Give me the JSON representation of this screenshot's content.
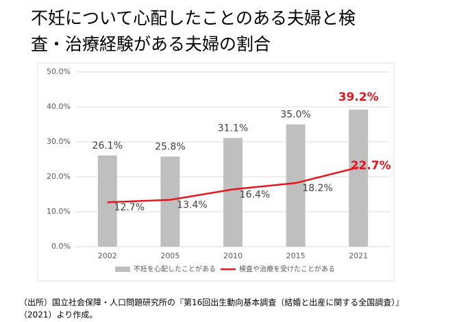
{
  "chart_data": {
    "type": "bar-line",
    "title_lines": [
      "不妊について心配したことのある夫婦と検",
      "査・治療経験がある夫婦の割合"
    ],
    "categories": [
      "2002",
      "2005",
      "2010",
      "2015",
      "2021"
    ],
    "series": [
      {
        "name": "不妊を心配したことがある",
        "type": "bar",
        "color": "#bfbfbf",
        "values": [
          26.1,
          25.8,
          31.1,
          35.0,
          39.2
        ],
        "value_labels": [
          "26.1%",
          "25.8%",
          "31.1%",
          "35.0%",
          "39.2%"
        ]
      },
      {
        "name": "検査や治療を受けたことがある",
        "type": "line",
        "color": "#e8141c",
        "values": [
          12.7,
          13.4,
          16.4,
          18.2,
          22.7
        ],
        "value_labels": [
          "12.7%",
          "13.4%",
          "16.4%",
          "18.2%",
          "22.7%"
        ]
      }
    ],
    "ylim": [
      0,
      50
    ],
    "yticks": [
      {
        "value": 0,
        "label": "0.0%"
      },
      {
        "value": 10,
        "label": "10.0%"
      },
      {
        "value": 20,
        "label": "20.0%"
      },
      {
        "value": 30,
        "label": "30.0%"
      },
      {
        "value": 40,
        "label": "40.0%"
      },
      {
        "value": 50,
        "label": "50.0%"
      }
    ],
    "grid": true,
    "legend": "bottom",
    "footnote_lines": [
      "（出所）国立社会保障・人口問題研究所の『第16回出生動向基本調査（結婚と出産に関する全国調査）』",
      "（2021）より作成。"
    ]
  }
}
